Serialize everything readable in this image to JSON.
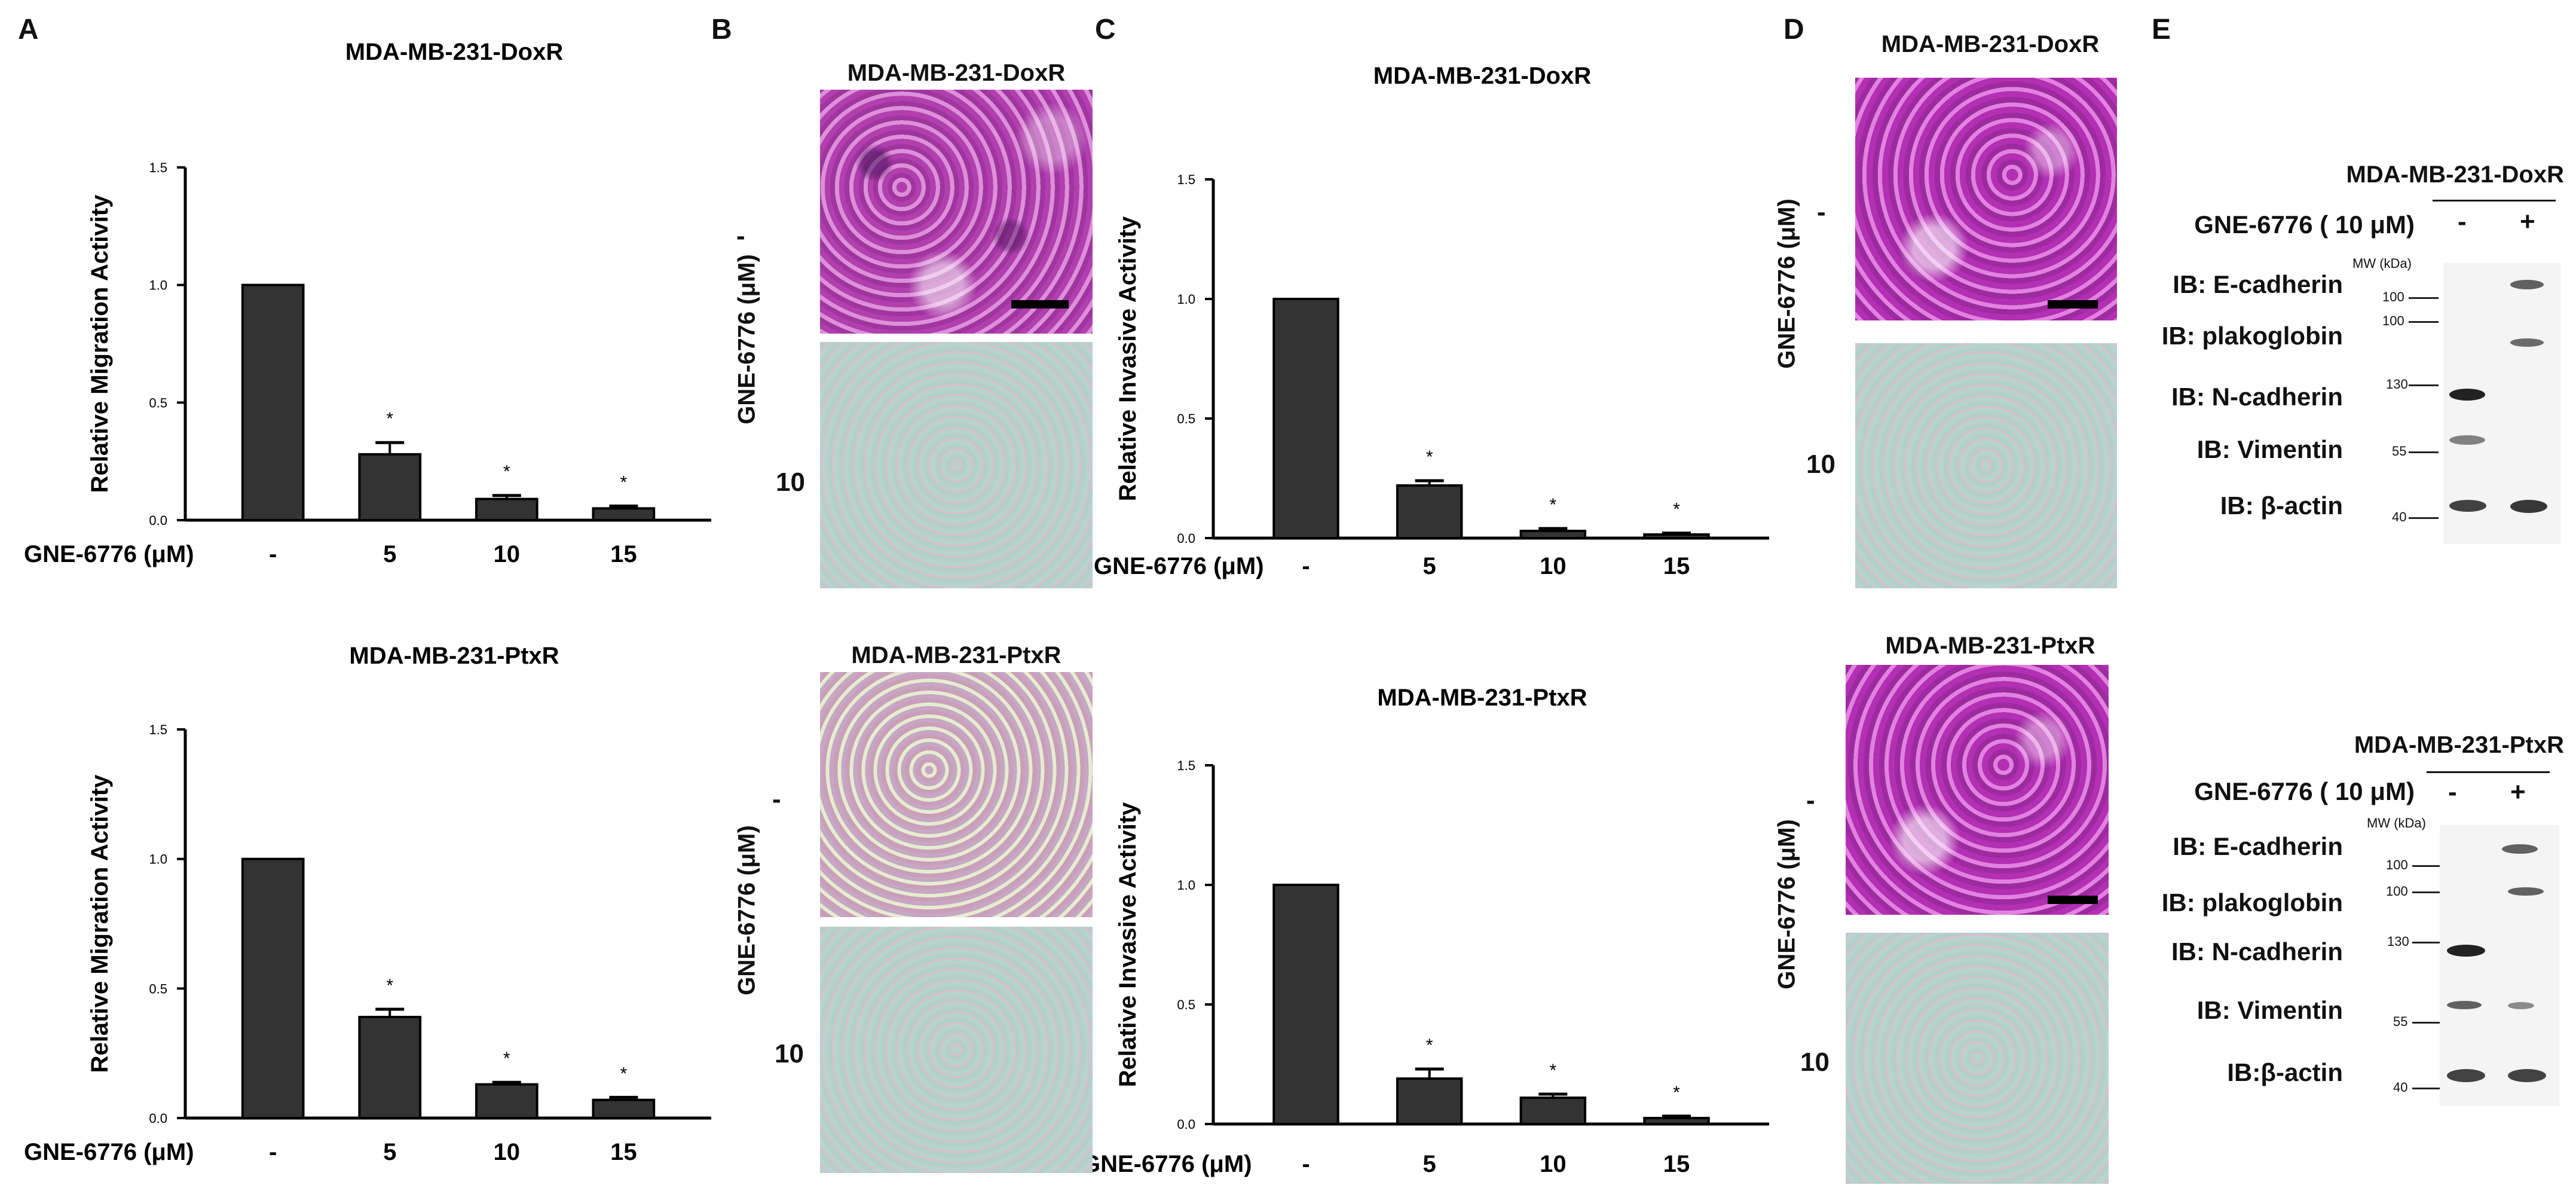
{
  "panel_labels": [
    "A",
    "B",
    "C",
    "D",
    "E"
  ],
  "chart_data": [
    {
      "id": "A-top",
      "type": "bar",
      "title": "MDA-MB-231-DoxR",
      "ylabel": "Relative Migration Activity",
      "xlabel": "GNE-6776 (μM)",
      "categories": [
        "-",
        "5",
        "10",
        "15"
      ],
      "values": [
        1.0,
        0.28,
        0.09,
        0.05
      ],
      "errors": [
        0.0,
        0.05,
        0.015,
        0.01
      ],
      "annotations": [
        "",
        "*",
        "*",
        "*"
      ],
      "ylim": [
        0,
        1.5
      ],
      "yticks": [
        "0.0",
        "0.5",
        "1.0",
        "1.5"
      ]
    },
    {
      "id": "A-bottom",
      "type": "bar",
      "title": "MDA-MB-231-PtxR",
      "ylabel": "Relative Migration Activity",
      "xlabel": "GNE-6776 (μM)",
      "categories": [
        "-",
        "5",
        "10",
        "15"
      ],
      "values": [
        1.0,
        0.39,
        0.13,
        0.07
      ],
      "errors": [
        0.0,
        0.03,
        0.008,
        0.01
      ],
      "annotations": [
        "",
        "*",
        "*",
        "*"
      ],
      "ylim": [
        0,
        1.5
      ],
      "yticks": [
        "0.0",
        "0.5",
        "1.0",
        "1.5"
      ]
    },
    {
      "id": "C-top",
      "type": "bar",
      "title": "MDA-MB-231-DoxR",
      "ylabel": "Relative Invasive Activity",
      "xlabel": "GNE-6776 (μM)",
      "categories": [
        "-",
        "5",
        "10",
        "15"
      ],
      "values": [
        1.0,
        0.22,
        0.03,
        0.015
      ],
      "errors": [
        0.0,
        0.02,
        0.01,
        0.006
      ],
      "annotations": [
        "",
        "*",
        "*",
        "*"
      ],
      "ylim": [
        0,
        1.5
      ],
      "yticks": [
        "0.0",
        "0.5",
        "1.0",
        "1.5"
      ]
    },
    {
      "id": "C-bottom",
      "type": "bar",
      "title": "MDA-MB-231-PtxR",
      "ylabel": "Relative Invasive Activity",
      "xlabel": "GNE-6776 (μM)",
      "categories": [
        "-",
        "5",
        "10",
        "15"
      ],
      "values": [
        1.0,
        0.19,
        0.11,
        0.025
      ],
      "errors": [
        0.0,
        0.04,
        0.015,
        0.008
      ],
      "annotations": [
        "",
        "*",
        "*",
        "*"
      ],
      "ylim": [
        0,
        1.5
      ],
      "yticks": [
        "0.0",
        "0.5",
        "1.0",
        "1.5"
      ]
    }
  ],
  "panel_b": {
    "top_title": "MDA-MB-231-DoxR",
    "bottom_title": "MDA-MB-231-PtxR",
    "axis_label": "GNE-6776 (μM)",
    "row_labels": [
      "-",
      "10"
    ]
  },
  "panel_d": {
    "top_title": "MDA-MB-231-DoxR",
    "bottom_title": "MDA-MB-231-PtxR",
    "axis_label": "GNE-6776 (μM)",
    "row_labels": [
      "-",
      "10"
    ]
  },
  "panel_e": {
    "top": {
      "title": "MDA-MB-231-DoxR",
      "treatment_label": "GNE-6776 ( 10 μM)",
      "lanes": [
        "-",
        "+"
      ],
      "mw_header": "MW (kDa)",
      "ib_labels": [
        "IB: E-cadherin",
        "IB: plakoglobin",
        "IB: N-cadherin",
        "IB: Vimentin",
        "IB: β-actin"
      ],
      "mw_markers": [
        "100",
        "100",
        "130",
        "55",
        "40"
      ]
    },
    "bottom": {
      "title": "MDA-MB-231-PtxR",
      "treatment_label": "GNE-6776 ( 10 μM)",
      "lanes": [
        "-",
        "+"
      ],
      "mw_header": "MW (kDa)",
      "ib_labels": [
        "IB: E-cadherin",
        "IB: plakoglobin",
        "IB: N-cadherin",
        "IB: Vimentin",
        "IB:β-actin"
      ],
      "mw_markers": [
        "100",
        "100",
        "130",
        "55",
        "40"
      ]
    }
  }
}
